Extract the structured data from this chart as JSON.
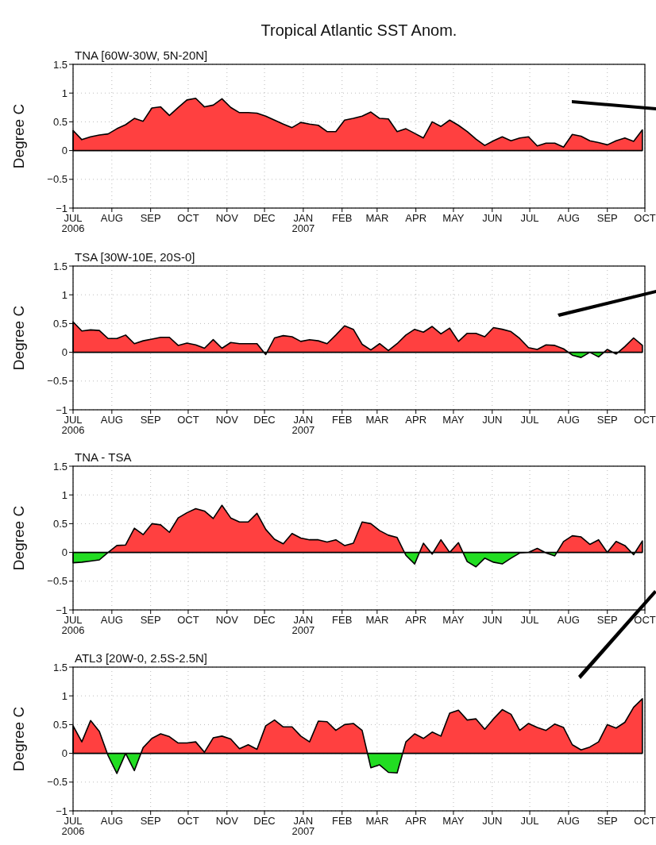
{
  "chart_data": [
    {
      "type": "area",
      "title": "Tropical Atlantic SST Anom.",
      "subtitle": "TNA [60W-30W, 5N-20N]",
      "ylabel": "Degree C",
      "grid": true,
      "xlim": [
        "2006-07-01",
        "2007-10-01"
      ],
      "xticks": [
        {
          "value": "2006-07-01",
          "label": "JUL\n2006"
        },
        {
          "value": "2006-08-01",
          "label": "AUG"
        },
        {
          "value": "2006-09-01",
          "label": "SEP"
        },
        {
          "value": "2006-10-01",
          "label": "OCT"
        },
        {
          "value": "2006-11-01",
          "label": "NOV"
        },
        {
          "value": "2006-12-01",
          "label": "DEC"
        },
        {
          "value": "2007-01-01",
          "label": "JAN\n2007"
        },
        {
          "value": "2007-02-01",
          "label": "FEB"
        },
        {
          "value": "2007-03-01",
          "label": "MAR"
        },
        {
          "value": "2007-04-01",
          "label": "APR"
        },
        {
          "value": "2007-05-01",
          "label": "MAY"
        },
        {
          "value": "2007-06-01",
          "label": "JUN"
        },
        {
          "value": "2007-07-01",
          "label": "JUL"
        },
        {
          "value": "2007-08-01",
          "label": "AUG"
        },
        {
          "value": "2007-09-01",
          "label": "SEP"
        },
        {
          "value": "2007-10-01",
          "label": "OCT"
        }
      ],
      "ylim": [
        -1,
        1.5
      ],
      "yticks": [
        -1,
        -0.5,
        0,
        0.5,
        1,
        1.5
      ],
      "x": [
        "2006-07-01",
        "2006-07-08",
        "2006-07-15",
        "2006-07-22",
        "2006-07-29",
        "2006-08-05",
        "2006-08-12",
        "2006-08-19",
        "2006-08-26",
        "2006-09-02",
        "2006-09-09",
        "2006-09-16",
        "2006-09-23",
        "2006-09-30",
        "2006-10-07",
        "2006-10-14",
        "2006-10-21",
        "2006-10-28",
        "2006-11-04",
        "2006-11-11",
        "2006-11-18",
        "2006-11-25",
        "2006-12-02",
        "2006-12-09",
        "2006-12-16",
        "2006-12-23",
        "2006-12-30",
        "2007-01-06",
        "2007-01-13",
        "2007-01-20",
        "2007-01-27",
        "2007-02-03",
        "2007-02-10",
        "2007-02-17",
        "2007-02-24",
        "2007-03-03",
        "2007-03-10",
        "2007-03-17",
        "2007-03-24",
        "2007-03-31",
        "2007-04-07",
        "2007-04-14",
        "2007-04-21",
        "2007-04-28",
        "2007-05-05",
        "2007-05-12",
        "2007-05-19",
        "2007-05-26",
        "2007-06-02",
        "2007-06-09",
        "2007-06-16",
        "2007-06-23",
        "2007-06-30",
        "2007-07-07",
        "2007-07-14",
        "2007-07-21",
        "2007-07-28",
        "2007-08-04",
        "2007-08-11",
        "2007-08-18",
        "2007-08-25",
        "2007-09-01",
        "2007-09-08",
        "2007-09-15",
        "2007-09-22",
        "2007-09-29"
      ],
      "series": [
        {
          "colors": [
            "#ff4040",
            "#ff4040",
            "#ff4040",
            "#ff4040",
            "#ff4040",
            "#ff4040",
            "#ff4040",
            "#ff4040",
            "#ff4040",
            "#ff4040",
            "#ff4040",
            "#ff4040",
            "#ff4040",
            "#ff4040",
            "#ff4040",
            "#ff4040",
            "#ff4040",
            "#ff4040",
            "#ff4040",
            "#ff4040",
            "#ff4040",
            "#ff4040",
            "#ff4040",
            "#ff4040",
            "#ff4040",
            "#ff4040",
            "#ff4040",
            "#ff4040",
            "#ff4040",
            "#ff4040",
            "#ff4040",
            "#ff4040",
            "#ff4040",
            "#ff4040",
            "#ff4040",
            "#ff4040",
            "#ff4040",
            "#ff4040",
            "#ff4040",
            "#ff4040",
            "#ff4040",
            "#ff4040",
            "#ff4040",
            "#ff4040",
            "#ff4040",
            "#ff4040",
            "#ff4040",
            "#ff4040",
            "#ff4040",
            "#ff4040",
            "#ff4040",
            "#ff4040",
            "#ff4040",
            "#ff4040",
            "#ff4040",
            "#ff4040",
            "#ff4040",
            "#ff4040",
            "#ff4040",
            "#ff4040",
            "#ff4040",
            "#ff4040",
            "#ff4040",
            "#ff4040",
            "#ff4040",
            "#ff4040"
          ],
          "values": [
            0.35,
            0.19,
            0.24,
            0.27,
            0.29,
            0.38,
            0.45,
            0.56,
            0.51,
            0.74,
            0.76,
            0.61,
            0.75,
            0.88,
            0.91,
            0.76,
            0.79,
            0.9,
            0.75,
            0.66,
            0.66,
            0.65,
            0.6,
            0.53,
            0.46,
            0.4,
            0.49,
            0.46,
            0.44,
            0.33,
            0.33,
            0.53,
            0.56,
            0.6,
            0.67,
            0.56,
            0.55,
            0.33,
            0.38,
            0.3,
            0.22,
            0.5,
            0.42,
            0.53,
            0.44,
            0.33,
            0.2,
            0.09,
            0.17,
            0.24,
            0.17,
            0.22,
            0.24,
            0.08,
            0.13,
            0.13,
            0.06,
            0.28,
            0.25,
            0.17,
            0.14,
            0.1,
            0.17,
            0.22,
            0.16,
            0.36
          ]
        }
      ]
    },
    {
      "type": "area",
      "subtitle": "TSA [30W-10E, 20S-0]",
      "ylabel": "Degree C",
      "grid": true,
      "xlim": [
        "2006-07-01",
        "2007-10-01"
      ],
      "xticks": [
        {
          "value": "2006-07-01",
          "label": "JUL\n2006"
        },
        {
          "value": "2006-08-01",
          "label": "AUG"
        },
        {
          "value": "2006-09-01",
          "label": "SEP"
        },
        {
          "value": "2006-10-01",
          "label": "OCT"
        },
        {
          "value": "2006-11-01",
          "label": "NOV"
        },
        {
          "value": "2006-12-01",
          "label": "DEC"
        },
        {
          "value": "2007-01-01",
          "label": "JAN\n2007"
        },
        {
          "value": "2007-02-01",
          "label": "FEB"
        },
        {
          "value": "2007-03-01",
          "label": "MAR"
        },
        {
          "value": "2007-04-01",
          "label": "APR"
        },
        {
          "value": "2007-05-01",
          "label": "MAY"
        },
        {
          "value": "2007-06-01",
          "label": "JUN"
        },
        {
          "value": "2007-07-01",
          "label": "JUL"
        },
        {
          "value": "2007-08-01",
          "label": "AUG"
        },
        {
          "value": "2007-09-01",
          "label": "SEP"
        },
        {
          "value": "2007-10-01",
          "label": "OCT"
        }
      ],
      "ylim": [
        -1,
        1.5
      ],
      "yticks": [
        -1,
        -0.5,
        0,
        0.5,
        1,
        1.5
      ],
      "x": [
        "2006-07-01",
        "2006-07-08",
        "2006-07-15",
        "2006-07-22",
        "2006-07-29",
        "2006-08-05",
        "2006-08-12",
        "2006-08-19",
        "2006-08-26",
        "2006-09-02",
        "2006-09-09",
        "2006-09-16",
        "2006-09-23",
        "2006-09-30",
        "2006-10-07",
        "2006-10-14",
        "2006-10-21",
        "2006-10-28",
        "2006-11-04",
        "2006-11-11",
        "2006-11-18",
        "2006-11-25",
        "2006-12-02",
        "2006-12-09",
        "2006-12-16",
        "2006-12-23",
        "2006-12-30",
        "2007-01-06",
        "2007-01-13",
        "2007-01-20",
        "2007-01-27",
        "2007-02-03",
        "2007-02-10",
        "2007-02-17",
        "2007-02-24",
        "2007-03-03",
        "2007-03-10",
        "2007-03-17",
        "2007-03-24",
        "2007-03-31",
        "2007-04-07",
        "2007-04-14",
        "2007-04-21",
        "2007-04-28",
        "2007-05-05",
        "2007-05-12",
        "2007-05-19",
        "2007-05-26",
        "2007-06-02",
        "2007-06-09",
        "2007-06-16",
        "2007-06-23",
        "2007-06-30",
        "2007-07-07",
        "2007-07-14",
        "2007-07-21",
        "2007-07-28",
        "2007-08-04",
        "2007-08-11",
        "2007-08-18",
        "2007-08-25",
        "2007-09-01",
        "2007-09-08",
        "2007-09-15",
        "2007-09-22",
        "2007-09-29"
      ],
      "series": [
        {
          "colors": [
            "#ff4040",
            "#ff4040",
            "#ff4040",
            "#ff4040",
            "#ff4040",
            "#ff4040",
            "#ff4040",
            "#ff4040",
            "#ff4040",
            "#ff4040",
            "#ff4040",
            "#ff4040",
            "#ff4040",
            "#ff4040",
            "#ff4040",
            "#ff4040",
            "#ff4040",
            "#ff4040",
            "#ff4040",
            "#ff4040",
            "#ff4040",
            "#ff4040",
            "#22dd22",
            "#ff4040",
            "#ff4040",
            "#ff4040",
            "#ff4040",
            "#ff4040",
            "#ff4040",
            "#ff4040",
            "#ff4040",
            "#ff4040",
            "#ff4040",
            "#ff4040",
            "#ff4040",
            "#ff4040",
            "#ff4040",
            "#ff4040",
            "#ff4040",
            "#ff4040",
            "#ff4040",
            "#ff4040",
            "#ff4040",
            "#ff4040",
            "#ff4040",
            "#ff4040",
            "#ff4040",
            "#ff4040",
            "#ff4040",
            "#ff4040",
            "#ff4040",
            "#ff4040",
            "#ff4040",
            "#ff4040",
            "#ff4040",
            "#ff4040",
            "#ff4040",
            "#22dd22",
            "#22dd22",
            "#ff4040",
            "#22dd22",
            "#ff4040",
            "#22dd22",
            "#ff4040",
            "#ff4040",
            "#ff4040"
          ],
          "values": [
            0.53,
            0.37,
            0.39,
            0.38,
            0.24,
            0.24,
            0.3,
            0.15,
            0.2,
            0.23,
            0.26,
            0.26,
            0.12,
            0.16,
            0.13,
            0.07,
            0.22,
            0.07,
            0.17,
            0.15,
            0.15,
            0.15,
            -0.04,
            0.25,
            0.29,
            0.27,
            0.19,
            0.22,
            0.2,
            0.15,
            0.3,
            0.46,
            0.4,
            0.14,
            0.04,
            0.15,
            0.03,
            0.15,
            0.3,
            0.4,
            0.35,
            0.45,
            0.32,
            0.42,
            0.19,
            0.33,
            0.33,
            0.27,
            0.43,
            0.4,
            0.36,
            0.24,
            0.08,
            0.05,
            0.13,
            0.12,
            0.06,
            -0.05,
            -0.09,
            0.0,
            -0.08,
            0.05,
            -0.03,
            0.1,
            0.25,
            0.12
          ]
        }
      ]
    },
    {
      "type": "area",
      "subtitle": "TNA - TSA",
      "ylabel": "Degree C",
      "grid": true,
      "xlim": [
        "2006-07-01",
        "2007-10-01"
      ],
      "xticks": [
        {
          "value": "2006-07-01",
          "label": "JUL\n2006"
        },
        {
          "value": "2006-08-01",
          "label": "AUG"
        },
        {
          "value": "2006-09-01",
          "label": "SEP"
        },
        {
          "value": "2006-10-01",
          "label": "OCT"
        },
        {
          "value": "2006-11-01",
          "label": "NOV"
        },
        {
          "value": "2006-12-01",
          "label": "DEC"
        },
        {
          "value": "2007-01-01",
          "label": "JAN\n2007"
        },
        {
          "value": "2007-02-01",
          "label": "FEB"
        },
        {
          "value": "2007-03-01",
          "label": "MAR"
        },
        {
          "value": "2007-04-01",
          "label": "APR"
        },
        {
          "value": "2007-05-01",
          "label": "MAY"
        },
        {
          "value": "2007-06-01",
          "label": "JUN"
        },
        {
          "value": "2007-07-01",
          "label": "JUL"
        },
        {
          "value": "2007-08-01",
          "label": "AUG"
        },
        {
          "value": "2007-09-01",
          "label": "SEP"
        },
        {
          "value": "2007-10-01",
          "label": "OCT"
        }
      ],
      "ylim": [
        -1,
        1.5
      ],
      "yticks": [
        -1,
        -0.5,
        0,
        0.5,
        1,
        1.5
      ],
      "x": [
        "2006-07-01",
        "2006-07-08",
        "2006-07-15",
        "2006-07-22",
        "2006-07-29",
        "2006-08-05",
        "2006-08-12",
        "2006-08-19",
        "2006-08-26",
        "2006-09-02",
        "2006-09-09",
        "2006-09-16",
        "2006-09-23",
        "2006-09-30",
        "2006-10-07",
        "2006-10-14",
        "2006-10-21",
        "2006-10-28",
        "2006-11-04",
        "2006-11-11",
        "2006-11-18",
        "2006-11-25",
        "2006-12-02",
        "2006-12-09",
        "2006-12-16",
        "2006-12-23",
        "2006-12-30",
        "2007-01-06",
        "2007-01-13",
        "2007-01-20",
        "2007-01-27",
        "2007-02-03",
        "2007-02-10",
        "2007-02-17",
        "2007-02-24",
        "2007-03-03",
        "2007-03-10",
        "2007-03-17",
        "2007-03-24",
        "2007-03-31",
        "2007-04-07",
        "2007-04-14",
        "2007-04-21",
        "2007-04-28",
        "2007-05-05",
        "2007-05-12",
        "2007-05-19",
        "2007-05-26",
        "2007-06-02",
        "2007-06-09",
        "2007-06-16",
        "2007-06-23",
        "2007-06-30",
        "2007-07-07",
        "2007-07-14",
        "2007-07-21",
        "2007-07-28",
        "2007-08-04",
        "2007-08-11",
        "2007-08-18",
        "2007-08-25",
        "2007-09-01",
        "2007-09-08",
        "2007-09-15",
        "2007-09-22",
        "2007-09-29"
      ],
      "series": [
        {
          "colors": [
            "#22dd22",
            "#22dd22",
            "#22dd22",
            "#22dd22",
            "#ff4040",
            "#ff4040",
            "#ff4040",
            "#ff4040",
            "#ff4040",
            "#ff4040",
            "#ff4040",
            "#ff4040",
            "#ff4040",
            "#ff4040",
            "#ff4040",
            "#ff4040",
            "#ff4040",
            "#ff4040",
            "#ff4040",
            "#ff4040",
            "#ff4040",
            "#ff4040",
            "#ff4040",
            "#ff4040",
            "#ff4040",
            "#ff4040",
            "#ff4040",
            "#ff4040",
            "#ff4040",
            "#ff4040",
            "#ff4040",
            "#ff4040",
            "#ff4040",
            "#ff4040",
            "#ff4040",
            "#ff4040",
            "#ff4040",
            "#ff4040",
            "#22dd22",
            "#22dd22",
            "#ff4040",
            "#22dd22",
            "#ff4040",
            "#ff4040",
            "#ff4040",
            "#22dd22",
            "#22dd22",
            "#22dd22",
            "#22dd22",
            "#22dd22",
            "#22dd22",
            "#22dd22",
            "#ff4040",
            "#ff4040",
            "#22dd22",
            "#22dd22",
            "#ff4040",
            "#ff4040",
            "#ff4040",
            "#ff4040",
            "#ff4040",
            "#ff4040",
            "#ff4040",
            "#ff4040",
            "#22dd22",
            "#ff4040"
          ],
          "values": [
            -0.18,
            -0.17,
            -0.15,
            -0.13,
            0.0,
            0.12,
            0.13,
            0.42,
            0.31,
            0.5,
            0.48,
            0.35,
            0.6,
            0.69,
            0.76,
            0.72,
            0.59,
            0.82,
            0.6,
            0.53,
            0.53,
            0.68,
            0.4,
            0.23,
            0.15,
            0.33,
            0.25,
            0.22,
            0.22,
            0.18,
            0.22,
            0.12,
            0.16,
            0.53,
            0.5,
            0.38,
            0.3,
            0.26,
            -0.05,
            -0.2,
            0.16,
            -0.03,
            0.22,
            0.0,
            0.17,
            -0.16,
            -0.25,
            -0.1,
            -0.17,
            -0.2,
            -0.1,
            -0.01,
            0.0,
            0.07,
            -0.01,
            -0.06,
            0.19,
            0.29,
            0.27,
            0.14,
            0.22,
            0.0,
            0.19,
            0.12,
            -0.04,
            0.2
          ]
        }
      ]
    },
    {
      "type": "area",
      "subtitle": "ATL3 [20W-0, 2.5S-2.5N]",
      "ylabel": "Degree C",
      "grid": true,
      "xlim": [
        "2006-07-01",
        "2007-10-01"
      ],
      "xticks": [
        {
          "value": "2006-07-01",
          "label": "JUL\n2006"
        },
        {
          "value": "2006-08-01",
          "label": "AUG"
        },
        {
          "value": "2006-09-01",
          "label": "SEP"
        },
        {
          "value": "2006-10-01",
          "label": "OCT"
        },
        {
          "value": "2006-11-01",
          "label": "NOV"
        },
        {
          "value": "2006-12-01",
          "label": "DEC"
        },
        {
          "value": "2007-01-01",
          "label": "JAN\n2007"
        },
        {
          "value": "2007-02-01",
          "label": "FEB"
        },
        {
          "value": "2007-03-01",
          "label": "MAR"
        },
        {
          "value": "2007-04-01",
          "label": "APR"
        },
        {
          "value": "2007-05-01",
          "label": "MAY"
        },
        {
          "value": "2007-06-01",
          "label": "JUN"
        },
        {
          "value": "2007-07-01",
          "label": "JUL"
        },
        {
          "value": "2007-08-01",
          "label": "AUG"
        },
        {
          "value": "2007-09-01",
          "label": "SEP"
        },
        {
          "value": "2007-10-01",
          "label": "OCT"
        }
      ],
      "ylim": [
        -1,
        1.5
      ],
      "yticks": [
        -1,
        -0.5,
        0,
        0.5,
        1,
        1.5
      ],
      "x": [
        "2006-07-01",
        "2006-07-08",
        "2006-07-15",
        "2006-07-22",
        "2006-07-29",
        "2006-08-05",
        "2006-08-12",
        "2006-08-19",
        "2006-08-26",
        "2006-09-02",
        "2006-09-09",
        "2006-09-16",
        "2006-09-23",
        "2006-09-30",
        "2006-10-07",
        "2006-10-14",
        "2006-10-21",
        "2006-10-28",
        "2006-11-04",
        "2006-11-11",
        "2006-11-18",
        "2006-11-25",
        "2006-12-02",
        "2006-12-09",
        "2006-12-16",
        "2006-12-23",
        "2006-12-30",
        "2007-01-06",
        "2007-01-13",
        "2007-01-20",
        "2007-01-27",
        "2007-02-03",
        "2007-02-10",
        "2007-02-17",
        "2007-02-24",
        "2007-03-03",
        "2007-03-10",
        "2007-03-17",
        "2007-03-24",
        "2007-03-31",
        "2007-04-07",
        "2007-04-14",
        "2007-04-21",
        "2007-04-28",
        "2007-05-05",
        "2007-05-12",
        "2007-05-19",
        "2007-05-26",
        "2007-06-02",
        "2007-06-09",
        "2007-06-16",
        "2007-06-23",
        "2007-06-30",
        "2007-07-07",
        "2007-07-14",
        "2007-07-21",
        "2007-07-28",
        "2007-08-04",
        "2007-08-11",
        "2007-08-18",
        "2007-08-25",
        "2007-09-01",
        "2007-09-08",
        "2007-09-15",
        "2007-09-22",
        "2007-09-29"
      ],
      "series": [
        {
          "colors": [
            "#ff4040",
            "#ff4040",
            "#ff4040",
            "#ff4040",
            "#22dd22",
            "#22dd22",
            "#ff4040",
            "#22dd22",
            "#ff4040",
            "#ff4040",
            "#ff4040",
            "#ff4040",
            "#ff4040",
            "#ff4040",
            "#ff4040",
            "#ff4040",
            "#ff4040",
            "#ff4040",
            "#ff4040",
            "#ff4040",
            "#ff4040",
            "#ff4040",
            "#ff4040",
            "#ff4040",
            "#ff4040",
            "#ff4040",
            "#ff4040",
            "#ff4040",
            "#ff4040",
            "#ff4040",
            "#ff4040",
            "#ff4040",
            "#ff4040",
            "#ff4040",
            "#22dd22",
            "#22dd22",
            "#22dd22",
            "#22dd22",
            "#ff4040",
            "#ff4040",
            "#ff4040",
            "#ff4040",
            "#ff4040",
            "#ff4040",
            "#ff4040",
            "#ff4040",
            "#ff4040",
            "#ff4040",
            "#ff4040",
            "#ff4040",
            "#ff4040",
            "#ff4040",
            "#ff4040",
            "#ff4040",
            "#ff4040",
            "#ff4040",
            "#ff4040",
            "#ff4040",
            "#ff4040",
            "#ff4040",
            "#ff4040",
            "#ff4040",
            "#ff4040",
            "#ff4040",
            "#ff4040",
            "#ff4040"
          ],
          "values": [
            0.48,
            0.2,
            0.57,
            0.38,
            -0.04,
            -0.35,
            0.0,
            -0.3,
            0.1,
            0.26,
            0.34,
            0.29,
            0.18,
            0.18,
            0.2,
            0.02,
            0.27,
            0.3,
            0.25,
            0.08,
            0.15,
            0.07,
            0.48,
            0.58,
            0.46,
            0.46,
            0.3,
            0.2,
            0.56,
            0.55,
            0.4,
            0.5,
            0.52,
            0.4,
            -0.25,
            -0.2,
            -0.33,
            -0.34,
            0.2,
            0.34,
            0.26,
            0.37,
            0.3,
            0.7,
            0.75,
            0.58,
            0.6,
            0.42,
            0.6,
            0.76,
            0.68,
            0.4,
            0.52,
            0.45,
            0.4,
            0.51,
            0.45,
            0.15,
            0.06,
            0.11,
            0.2,
            0.5,
            0.44,
            0.54,
            0.8,
            0.95
          ]
        }
      ]
    }
  ]
}
